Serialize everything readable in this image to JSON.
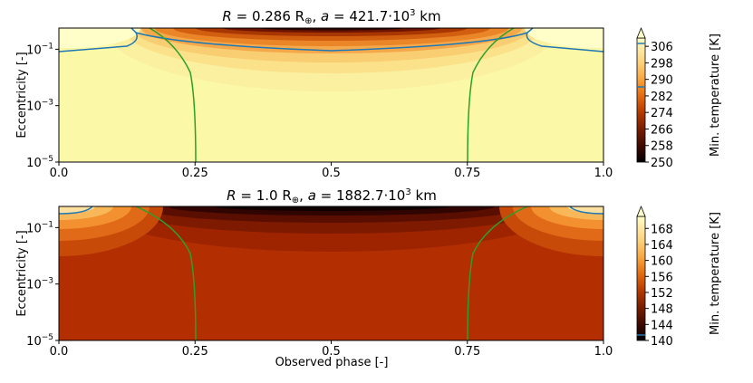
{
  "chart_data": [
    {
      "type": "heatmap",
      "title_parts": {
        "r_sym": "R",
        "r_eq": " = 0.286 R",
        "r_sub": "⊕",
        "sep": ", ",
        "a_sym": "a",
        "a_eq": " = 421.7·10",
        "a_exp": "3",
        "unit": " km"
      },
      "xlabel": "",
      "ylabel": "Eccentricity [-]",
      "x_ticks": [
        "0.0",
        "0.25",
        "0.5",
        "0.75",
        "1.0"
      ],
      "y_ticks": [
        {
          "base": "10",
          "exp": "−1"
        },
        {
          "base": "10",
          "exp": "−3"
        },
        {
          "base": "10",
          "exp": "−5"
        }
      ],
      "xlim": [
        0,
        1
      ],
      "ylim_log10": [
        -5,
        -0.25
      ],
      "y_scale": "log",
      "colorbar": {
        "label": "Min. temperature [K]",
        "ticks": [
          "250",
          "258",
          "266",
          "274",
          "282",
          "290",
          "298",
          "306"
        ],
        "range": [
          250,
          310
        ],
        "contour_line_value": 290
      },
      "background_level": 294,
      "min_level_at_top": 250,
      "contour_colors": {
        "temperature": "#1f77b4",
        "phase": "#2ca02c"
      },
      "phase_lines_at": [
        0.25,
        0.75
      ]
    },
    {
      "type": "heatmap",
      "title_parts": {
        "r_sym": "R",
        "r_eq": " = 1.0 R",
        "r_sub": "⊕",
        "sep": ", ",
        "a_sym": "a",
        "a_eq": " = 1882.7·10",
        "a_exp": "3",
        "unit": " km"
      },
      "xlabel": "Observed phase [-]",
      "ylabel": "Eccentricity [-]",
      "x_ticks": [
        "0.0",
        "0.25",
        "0.5",
        "0.75",
        "1.0"
      ],
      "y_ticks": [
        {
          "base": "10",
          "exp": "−1"
        },
        {
          "base": "10",
          "exp": "−3"
        },
        {
          "base": "10",
          "exp": "−5"
        }
      ],
      "xlim": [
        0,
        1
      ],
      "ylim_log10": [
        -5,
        -0.25
      ],
      "y_scale": "log",
      "colorbar": {
        "label": "Min. temperature [K]",
        "ticks": [
          "140",
          "144",
          "148",
          "152",
          "156",
          "160",
          "164",
          "168"
        ],
        "range": [
          140,
          171
        ],
        "contour_line_value": 142
      },
      "background_level": 150,
      "min_level_at_top": 140,
      "contour_colors": {
        "temperature": "#1f77b4",
        "phase": "#2ca02c"
      },
      "phase_lines_at": [
        0.25,
        0.75
      ]
    }
  ]
}
